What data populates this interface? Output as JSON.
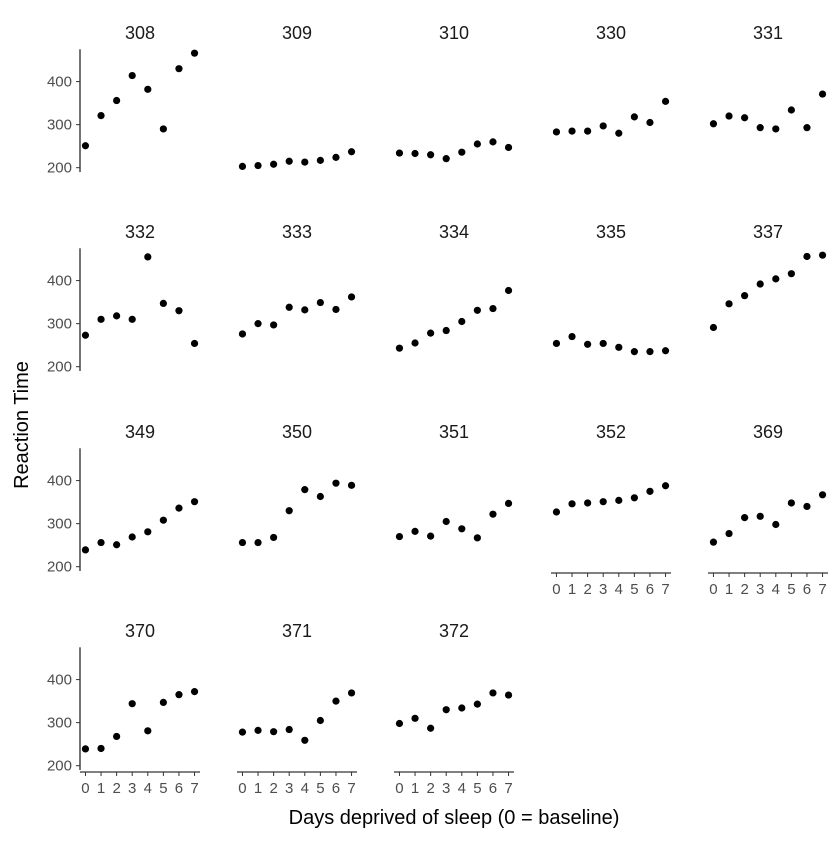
{
  "chart_data": {
    "type": "scatter",
    "facet_layout": "5-columns",
    "xlabel": "Days deprived of sleep (0 = baseline)",
    "ylabel": "Reaction Time",
    "x_ticks": [
      0,
      1,
      2,
      3,
      4,
      5,
      6,
      7
    ],
    "y_ticks": [
      200,
      300,
      400
    ],
    "xlim": [
      -0.35,
      7.35
    ],
    "ylim": [
      190,
      478
    ],
    "grid": false,
    "legend": "none",
    "point_color": "#000000",
    "x": [
      0,
      1,
      2,
      3,
      4,
      5,
      6,
      7
    ],
    "panels": [
      {
        "id": "308",
        "values": [
          251,
          321,
          356,
          414,
          382,
          290,
          430,
          466
        ]
      },
      {
        "id": "309",
        "values": [
          203,
          205,
          208,
          215,
          213,
          217,
          224,
          237
        ]
      },
      {
        "id": "310",
        "values": [
          234,
          233,
          230,
          221,
          236,
          255,
          260,
          247
        ]
      },
      {
        "id": "330",
        "values": [
          283,
          285,
          285,
          297,
          280,
          318,
          305,
          354
        ]
      },
      {
        "id": "331",
        "values": [
          302,
          320,
          316,
          293,
          290,
          334,
          293,
          371
        ]
      },
      {
        "id": "332",
        "values": [
          273,
          310,
          318,
          310,
          455,
          347,
          330,
          254
        ]
      },
      {
        "id": "333",
        "values": [
          276,
          300,
          297,
          338,
          332,
          349,
          333,
          362
        ]
      },
      {
        "id": "334",
        "values": [
          243,
          255,
          278,
          284,
          305,
          331,
          335,
          377
        ]
      },
      {
        "id": "335",
        "values": [
          254,
          270,
          252,
          254,
          245,
          235,
          235,
          237
        ]
      },
      {
        "id": "337",
        "values": [
          291,
          346,
          365,
          392,
          404,
          416,
          456,
          459
        ]
      },
      {
        "id": "349",
        "values": [
          239,
          256,
          251,
          269,
          281,
          308,
          336,
          351
        ]
      },
      {
        "id": "350",
        "values": [
          256,
          256,
          268,
          330,
          379,
          363,
          394,
          389
        ]
      },
      {
        "id": "351",
        "values": [
          270,
          282,
          271,
          305,
          288,
          267,
          322,
          347
        ]
      },
      {
        "id": "352",
        "values": [
          327,
          346,
          348,
          351,
          354,
          360,
          375,
          388
        ]
      },
      {
        "id": "369",
        "values": [
          257,
          277,
          314,
          317,
          298,
          348,
          340,
          367
        ]
      },
      {
        "id": "370",
        "values": [
          239,
          240,
          268,
          344,
          281,
          347,
          365,
          372
        ]
      },
      {
        "id": "371",
        "values": [
          278,
          282,
          279,
          284,
          259,
          305,
          350,
          369
        ]
      },
      {
        "id": "372",
        "values": [
          298,
          310,
          287,
          330,
          334,
          343,
          369,
          364
        ]
      }
    ]
  }
}
